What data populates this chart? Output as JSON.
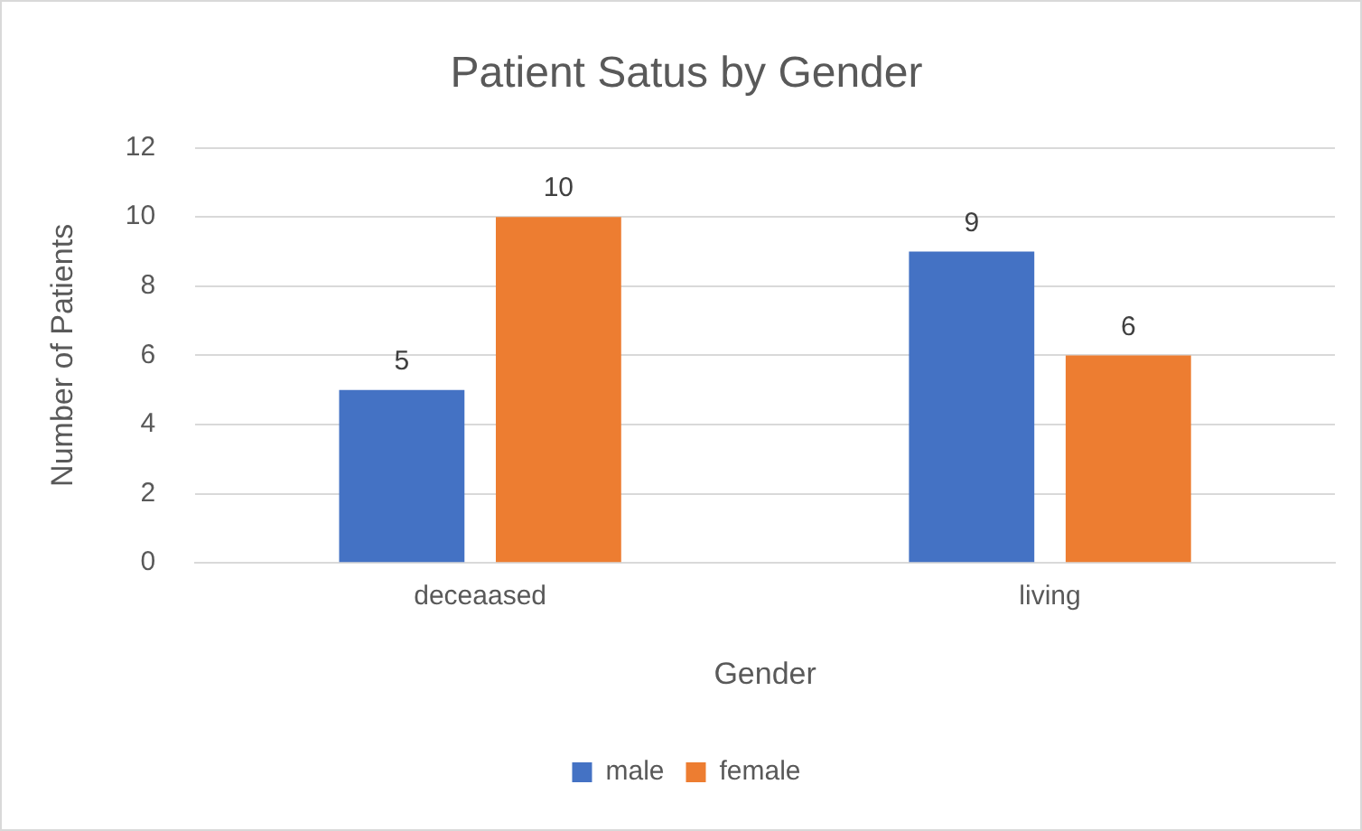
{
  "chart_data": {
    "type": "bar",
    "title": "Patient Satus by Gender",
    "xlabel": "Gender",
    "ylabel": "Number of Patients",
    "categories": [
      "deceaased",
      "living"
    ],
    "series": [
      {
        "name": "male",
        "color": "#4472c4",
        "values": [
          5,
          9
        ]
      },
      {
        "name": "female",
        "color": "#ed7d31",
        "values": [
          10,
          6
        ]
      }
    ],
    "ylim": [
      0,
      12
    ],
    "yticks": [
      0,
      2,
      4,
      6,
      8,
      10,
      12
    ],
    "grid": "y",
    "legend": "bottom",
    "data_labels": true
  }
}
